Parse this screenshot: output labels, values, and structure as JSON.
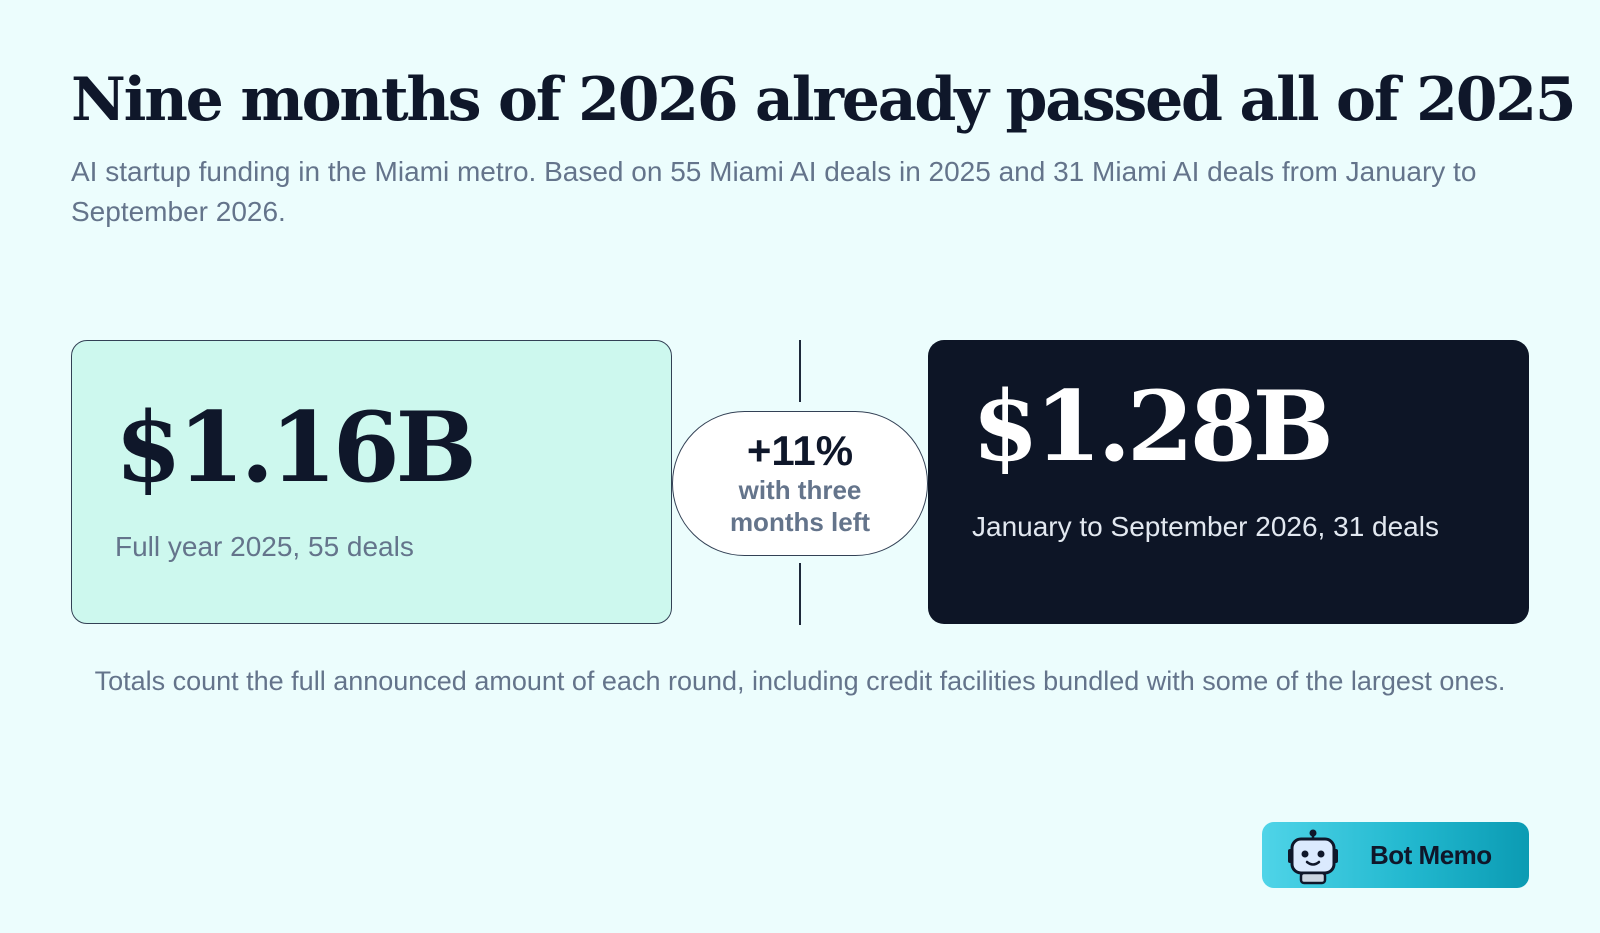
{
  "header": {
    "title": "Nine months of 2026 already passed all of 2025",
    "subtitle": "AI startup funding in the Miami metro. Based on 55 Miami AI deals in 2025 and 31 Miami AI deals from January to September 2026."
  },
  "comparison": {
    "left": {
      "amount": "$1.16B",
      "label": "Full year 2025, 55 deals"
    },
    "change": {
      "percent": "+11%",
      "note": "with three months left"
    },
    "right": {
      "amount": "$1.28B",
      "label": "January to September 2026, 31 deals"
    }
  },
  "footnote": "Totals count the full announced amount of each round, including credit facilities bundled with some of the largest ones.",
  "brand": {
    "name": "Bot Memo",
    "icon": "robot-icon"
  },
  "colors": {
    "background": "#ecfdfd",
    "left_card": "#cdf8ee",
    "right_card": "#0d1526",
    "text_dark": "#0f172a",
    "text_muted": "#64748b",
    "badge_start": "#4fd4e8",
    "badge_end": "#0b9bb3"
  }
}
